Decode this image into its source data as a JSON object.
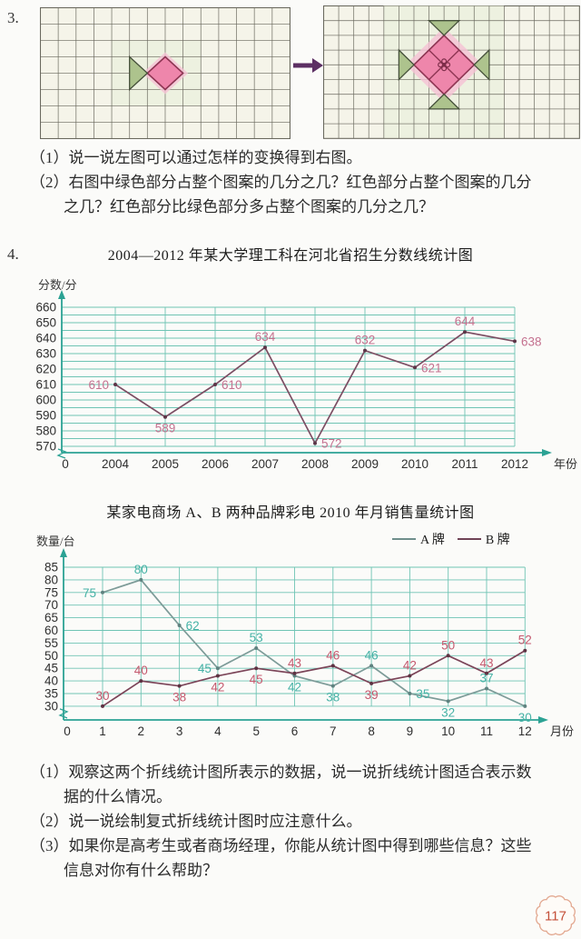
{
  "page": {
    "number": "117",
    "badge_color": "#c44f38",
    "badge_border": "#e2a78f"
  },
  "problem3": {
    "number": "3.",
    "lines": [
      {
        "text": "（1）说一说左图可以通过怎样的变换得到右图。"
      },
      {
        "text": "（2）右图中绿色部分占整个图案的几分之几？红色部分占整个图案的几分"
      },
      {
        "text": "之几？红色部分比绿色部分多占整个图案的几分之几？"
      }
    ],
    "figure": {
      "colors": {
        "paper": "#f5f4e9",
        "tint": "#e4edd4",
        "grid_line": "#6a695e",
        "pink": "#ee86ab",
        "pink_stroke": "#8e3553",
        "pink_halo": "#f5c2d5",
        "green": "#adc38d",
        "green_stroke": "#45503a",
        "arrow": "#5c2f63",
        "ornament": "#7d2d49"
      },
      "left_grid": {
        "cols": 14,
        "rows": 8,
        "triangles": [
          [
            [
              5,
              3
            ],
            [
              5,
              5
            ],
            [
              6,
              4
            ]
          ]
        ],
        "diamond": [
          [
            7,
            3
          ],
          [
            8,
            4
          ],
          [
            7,
            5
          ],
          [
            6,
            4
          ]
        ],
        "inner_lines": []
      },
      "right_grid": {
        "cols": 17,
        "rows": 9,
        "triangles": [
          [
            [
              7,
              1
            ],
            [
              9,
              1
            ],
            [
              8,
              2
            ]
          ],
          [
            [
              7,
              7
            ],
            [
              9,
              7
            ],
            [
              8,
              6
            ]
          ],
          [
            [
              5,
              3
            ],
            [
              5,
              5
            ],
            [
              6,
              4
            ]
          ],
          [
            [
              11,
              3
            ],
            [
              11,
              5
            ],
            [
              10,
              4
            ]
          ]
        ],
        "diamond": [
          [
            8,
            2
          ],
          [
            10,
            4
          ],
          [
            8,
            6
          ],
          [
            6,
            4
          ]
        ],
        "inner_lines": [
          [
            [
              7,
              3
            ],
            [
              9,
              5
            ]
          ],
          [
            [
              9,
              3
            ],
            [
              7,
              5
            ]
          ]
        ],
        "ornament_at": [
          8,
          4
        ]
      }
    }
  },
  "problem4": {
    "number": "4.",
    "lines": [
      {
        "text": "（1）观察这两个折线统计图所表示的数据，说一说折线统计图适合表示数"
      },
      {
        "text": "据的什么情况。"
      },
      {
        "text": "（2）说一说绘制复式折线统计图时应注意什么。"
      },
      {
        "text": "（3）如果你是高考生或者商场经理，你能从统计图中得到哪些信息？这些"
      },
      {
        "text": "信息对你有什么帮助？"
      }
    ]
  },
  "chart_data": [
    {
      "type": "line",
      "title": "2004—2012 年某大学理工科在河北省招生分数线统计图",
      "ylabel": "分数/分",
      "xlabel": "年份",
      "origin_label": "0",
      "categories": [
        "2004",
        "2005",
        "2006",
        "2007",
        "2008",
        "2009",
        "2010",
        "2011",
        "2012"
      ],
      "ylim": [
        570,
        660
      ],
      "yticks": [
        660,
        650,
        640,
        630,
        620,
        610,
        600,
        590,
        580,
        570
      ],
      "grid_step": 5,
      "grid_on": true,
      "axis_break": true,
      "axis_color": "#2ba294",
      "grid_color": "#6fc4b4",
      "tick_color": "#2e2e2e",
      "series": [
        {
          "name": "分数线",
          "values": [
            610,
            589,
            610,
            634,
            572,
            632,
            621,
            644,
            638
          ],
          "label_side": [
            "left",
            "below",
            "right",
            "above",
            "right",
            "above",
            "right",
            "above",
            "right"
          ],
          "line_color": "#7b4e63",
          "point_color": "#5d3648",
          "label_color": "#c4718f"
        }
      ]
    },
    {
      "type": "line",
      "title": "某家电商场 A、B 两种品牌彩电 2010 年月销售量统计图",
      "ylabel": "数量/台",
      "xlabel": "月份",
      "origin_label": "0",
      "categories": [
        "1",
        "2",
        "3",
        "4",
        "5",
        "6",
        "7",
        "8",
        "9",
        "10",
        "11",
        "12"
      ],
      "ylim": [
        30,
        85
      ],
      "yticks": [
        85,
        80,
        75,
        70,
        65,
        60,
        55,
        50,
        45,
        40,
        35,
        30
      ],
      "grid_step": 5,
      "grid_on": true,
      "axis_break": true,
      "axis_color": "#2ba294",
      "grid_color": "#6fc4b4",
      "tick_color": "#2e2e2e",
      "legend": [
        {
          "label": "A 牌",
          "color": "#6f8f8c"
        },
        {
          "label": "B 牌",
          "color": "#6f4356"
        }
      ],
      "legend_position": "top-right",
      "series": [
        {
          "name": "A 牌",
          "values": [
            75,
            80,
            62,
            45,
            53,
            42,
            38,
            46,
            35,
            32,
            37,
            30
          ],
          "label_side": [
            "left",
            "above",
            "right",
            "left",
            "above",
            "below",
            "below",
            "above",
            "right",
            "below",
            "above",
            "below"
          ],
          "line_color": "#7d9b98",
          "point_color": "#5f8280",
          "label_color": "#45b2a6"
        },
        {
          "name": "B 牌",
          "values": [
            30,
            40,
            38,
            42,
            45,
            43,
            46,
            39,
            42,
            50,
            43,
            52
          ],
          "label_side": [
            "above",
            "above",
            "below",
            "below",
            "below",
            "above",
            "above",
            "below",
            "above",
            "above",
            "above",
            "above"
          ],
          "line_color": "#7b4458",
          "point_color": "#5e3343",
          "label_color": "#c4596e"
        }
      ]
    }
  ]
}
